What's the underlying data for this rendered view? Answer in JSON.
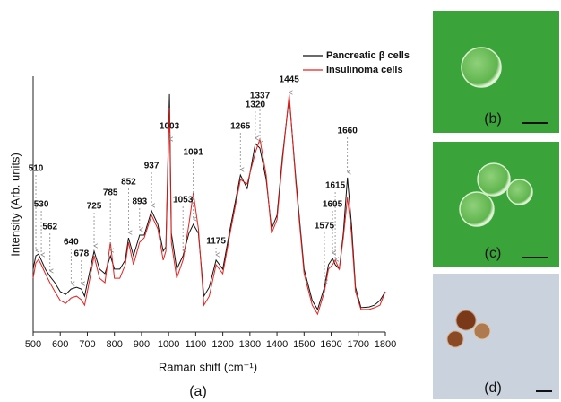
{
  "chart_data": {
    "type": "line",
    "x_label": "Raman shift (cm⁻¹)",
    "y_label": "Intensity (Arb. units)",
    "panel_label": "(a)",
    "xlim": [
      500,
      1800
    ],
    "ylim": [
      0,
      100
    ],
    "xticks": [
      500,
      600,
      700,
      800,
      900,
      1000,
      1100,
      1200,
      1300,
      1400,
      1500,
      1600,
      1700,
      1800
    ],
    "legend": "upper right",
    "x": [
      500,
      510,
      520,
      530,
      545,
      562,
      580,
      600,
      620,
      640,
      660,
      678,
      690,
      700,
      725,
      745,
      765,
      785,
      800,
      820,
      840,
      852,
      870,
      893,
      910,
      937,
      960,
      980,
      990,
      1003,
      1010,
      1030,
      1053,
      1075,
      1091,
      1110,
      1130,
      1150,
      1175,
      1200,
      1230,
      1265,
      1290,
      1320,
      1337,
      1360,
      1380,
      1400,
      1420,
      1445,
      1470,
      1500,
      1530,
      1550,
      1575,
      1590,
      1605,
      1615,
      1630,
      1645,
      1660,
      1675,
      1690,
      1710,
      1740,
      1760,
      1780,
      1800
    ],
    "series": [
      {
        "name": "Pancreatic β cells",
        "color": "#111111",
        "values": [
          24.6,
          29.8,
          30.5,
          28.1,
          24.6,
          21.8,
          19.3,
          15.8,
          14.7,
          16.8,
          17.5,
          16.8,
          14.0,
          19.3,
          31.6,
          24.6,
          22.8,
          29.8,
          24.6,
          24.6,
          28.1,
          36.8,
          29.8,
          37.9,
          37.9,
          47.4,
          42.1,
          31.6,
          33.3,
          93.0,
          38.6,
          24.6,
          29.8,
          38.6,
          42.1,
          38.6,
          14.0,
          17.5,
          28.1,
          24.6,
          42.1,
          61.4,
          56.1,
          73.7,
          71.9,
          59.6,
          40.4,
          45.6,
          68.4,
          91.9,
          59.6,
          24.6,
          12.3,
          8.8,
          17.5,
          26.3,
          28.8,
          26.3,
          24.6,
          38.6,
          60.4,
          42.1,
          17.5,
          9.5,
          9.8,
          10.5,
          12.3,
          15.8
        ]
      },
      {
        "name": "Insulinoma cells",
        "color": "#e8201e",
        "values": [
          21.0,
          27.0,
          28.4,
          26.3,
          22.8,
          19.3,
          15.8,
          12.3,
          11.2,
          13.3,
          14.0,
          12.6,
          10.5,
          15.8,
          29.8,
          21.0,
          19.3,
          35.1,
          21.0,
          21.0,
          26.3,
          35.1,
          26.3,
          35.1,
          36.8,
          45.6,
          40.4,
          28.1,
          31.6,
          87.7,
          35.1,
          21.0,
          28.1,
          42.1,
          54.4,
          40.4,
          10.5,
          14.0,
          26.3,
          22.8,
          40.4,
          59.6,
          57.9,
          70.2,
          75.4,
          61.4,
          38.6,
          43.9,
          66.7,
          93.0,
          57.9,
          22.8,
          10.5,
          7.0,
          15.8,
          24.6,
          26.3,
          28.1,
          24.6,
          36.8,
          52.6,
          38.6,
          15.8,
          8.8,
          8.8,
          9.5,
          10.5,
          15.8
        ]
      }
    ],
    "peaks": [
      510,
      530,
      562,
      640,
      678,
      725,
      785,
      852,
      893,
      937,
      1003,
      1053,
      1091,
      1175,
      1265,
      1320,
      1337,
      1445,
      1575,
      1605,
      1615,
      1660
    ]
  },
  "images": [
    {
      "label": "(b)"
    },
    {
      "label": "(c)"
    },
    {
      "label": "(d)"
    }
  ]
}
